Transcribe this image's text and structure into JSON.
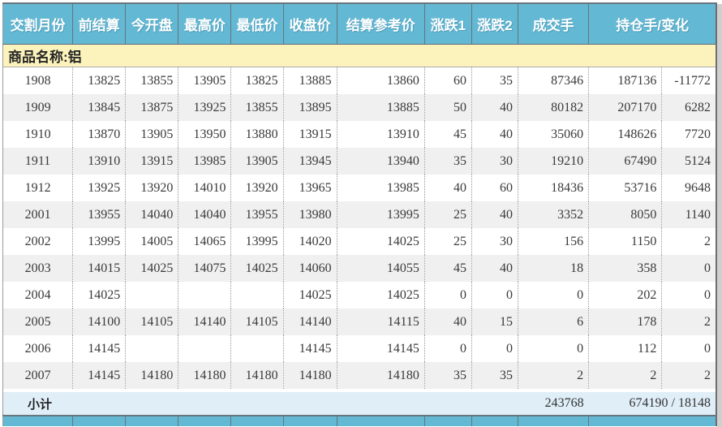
{
  "table": {
    "group_label": "商品名称:铝",
    "columns": [
      {
        "key": "month",
        "label": "交割月份"
      },
      {
        "key": "prev_settle",
        "label": "前结算"
      },
      {
        "key": "open",
        "label": "今开盘"
      },
      {
        "key": "high",
        "label": "最高价"
      },
      {
        "key": "low",
        "label": "最低价"
      },
      {
        "key": "close",
        "label": "收盘价"
      },
      {
        "key": "settle_ref",
        "label": "结算参考价"
      },
      {
        "key": "chg1",
        "label": "涨跌1"
      },
      {
        "key": "chg2",
        "label": "涨跌2"
      },
      {
        "key": "volume",
        "label": "成交手"
      },
      {
        "key": "oi",
        "label": "持仓手/变化"
      }
    ],
    "rows": [
      [
        "1908",
        "13825",
        "13855",
        "13905",
        "13825",
        "13885",
        "13860",
        "60",
        "35",
        "87346",
        "187136",
        "-11772"
      ],
      [
        "1909",
        "13845",
        "13875",
        "13925",
        "13855",
        "13895",
        "13885",
        "50",
        "40",
        "80182",
        "207170",
        "6282"
      ],
      [
        "1910",
        "13870",
        "13905",
        "13950",
        "13880",
        "13915",
        "13910",
        "45",
        "40",
        "35060",
        "148626",
        "7720"
      ],
      [
        "1911",
        "13910",
        "13915",
        "13985",
        "13905",
        "13945",
        "13940",
        "35",
        "30",
        "19210",
        "67490",
        "5124"
      ],
      [
        "1912",
        "13925",
        "13920",
        "14010",
        "13920",
        "13965",
        "13985",
        "40",
        "60",
        "18436",
        "53716",
        "9648"
      ],
      [
        "2001",
        "13955",
        "14040",
        "14040",
        "13955",
        "13980",
        "13995",
        "25",
        "40",
        "3352",
        "8050",
        "1140"
      ],
      [
        "2002",
        "13995",
        "14005",
        "14065",
        "13995",
        "14020",
        "14025",
        "25",
        "30",
        "156",
        "1150",
        "2"
      ],
      [
        "2003",
        "14015",
        "14025",
        "14075",
        "14025",
        "14060",
        "14055",
        "45",
        "40",
        "18",
        "358",
        "0"
      ],
      [
        "2004",
        "14025",
        "",
        "",
        "",
        "14025",
        "14025",
        "0",
        "0",
        "0",
        "202",
        "0"
      ],
      [
        "2005",
        "14100",
        "14105",
        "14140",
        "14105",
        "14140",
        "14115",
        "40",
        "15",
        "6",
        "178",
        "2"
      ],
      [
        "2006",
        "14145",
        "",
        "",
        "",
        "14145",
        "14145",
        "0",
        "0",
        "0",
        "112",
        "0"
      ],
      [
        "2007",
        "14145",
        "14180",
        "14180",
        "14180",
        "14180",
        "14180",
        "35",
        "35",
        "2",
        "2",
        "2"
      ]
    ],
    "subtotal": {
      "label": "小计",
      "volume_total": "243768",
      "oi_total": "674190 / 18148"
    },
    "colors": {
      "header_bg": "#63b8d4",
      "group_band_bg": "#fbf3bb",
      "row_stripe_bg": "#f0f0f0",
      "subtotal_bg": "#dfeef7",
      "header_text": "#ffffff",
      "data_text": "#3a3a3a",
      "dark_border": "#68767e"
    }
  }
}
